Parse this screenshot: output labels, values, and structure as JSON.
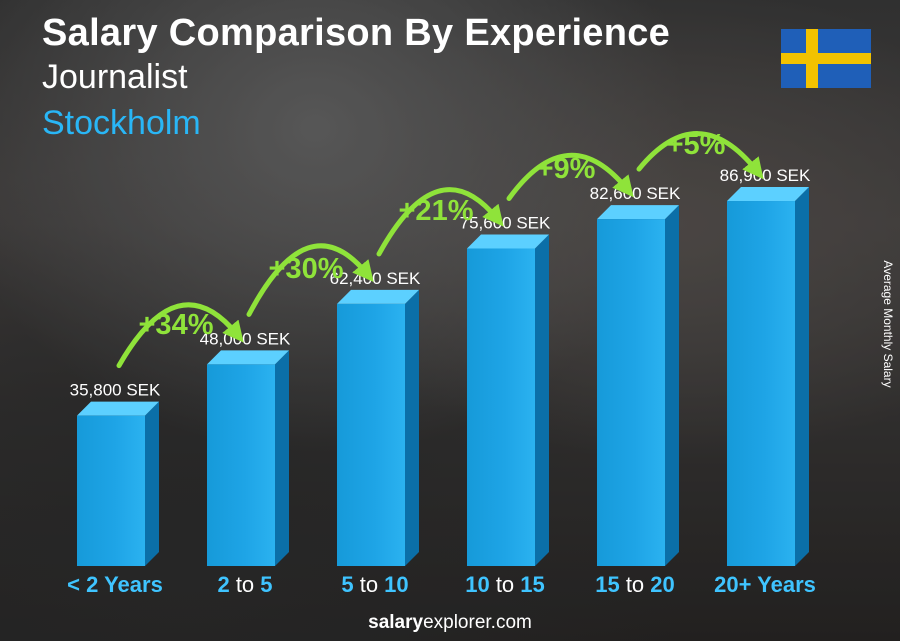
{
  "header": {
    "title": "Salary Comparison By Experience",
    "job": "Journalist",
    "city": "Stockholm"
  },
  "flag": {
    "country": "Sweden",
    "blue": "#1f5fb8",
    "yellow": "#f2c200"
  },
  "y_axis_label": "Average Monthly Salary",
  "footer": {
    "brand_bold": "salary",
    "brand_rest": "explorer.com"
  },
  "colors": {
    "bar_front": "#1ea4e6",
    "bar_side": "#0b6fa8",
    "bar_top": "#5cd0ff",
    "value_text": "#ffffff",
    "growth": "#8fe33a",
    "tick_white": "#ffffff",
    "tick_blue": "#3fc4ff"
  },
  "chart_data": {
    "type": "bar",
    "categories": [
      "< 2 Years",
      "2 to 5",
      "5 to 10",
      "10 to 15",
      "15 to 20",
      "20+ Years"
    ],
    "tick_parts": [
      [
        {
          "t": "< 2 Years",
          "c": "blue"
        }
      ],
      [
        {
          "t": "2",
          "c": "blue"
        },
        {
          "t": " to ",
          "c": "white"
        },
        {
          "t": "5",
          "c": "blue"
        }
      ],
      [
        {
          "t": "5",
          "c": "blue"
        },
        {
          "t": " to ",
          "c": "white"
        },
        {
          "t": "10",
          "c": "blue"
        }
      ],
      [
        {
          "t": "10",
          "c": "blue"
        },
        {
          "t": " to ",
          "c": "white"
        },
        {
          "t": "15",
          "c": "blue"
        }
      ],
      [
        {
          "t": "15",
          "c": "blue"
        },
        {
          "t": " to ",
          "c": "white"
        },
        {
          "t": "20",
          "c": "blue"
        }
      ],
      [
        {
          "t": "20+ Years",
          "c": "blue"
        }
      ]
    ],
    "values": [
      35800,
      48000,
      62400,
      75600,
      82600,
      86900
    ],
    "value_labels": [
      "35,800 SEK",
      "48,000 SEK",
      "62,400 SEK",
      "75,600 SEK",
      "82,600 SEK",
      "86,900 SEK"
    ],
    "growth_labels": [
      "+34%",
      "+30%",
      "+21%",
      "+9%",
      "+5%"
    ],
    "unit": "SEK",
    "ylim": [
      0,
      100000
    ],
    "grid": false
  }
}
